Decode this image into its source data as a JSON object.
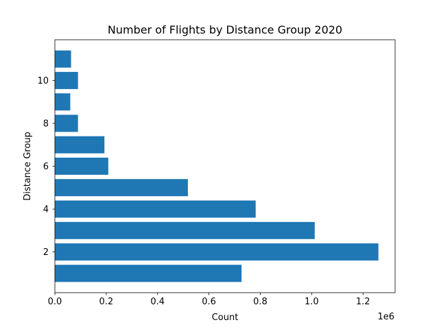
{
  "chart_data": {
    "type": "bar",
    "orientation": "horizontal",
    "title": "Number of Flights by Distance Group 2020",
    "xlabel": "Count",
    "ylabel": "Distance Group",
    "x_offset_label": "1e6",
    "xlim": [
      0,
      1325000
    ],
    "ylim": [
      0.1,
      11.9
    ],
    "x_ticks": [
      0,
      200000,
      400000,
      600000,
      800000,
      1000000,
      1200000
    ],
    "x_tick_labels": [
      "0.0",
      "0.2",
      "0.4",
      "0.6",
      "0.8",
      "1.0",
      "1.2"
    ],
    "y_ticks": [
      2,
      4,
      6,
      8,
      10
    ],
    "y_tick_labels": [
      "2",
      "4",
      "6",
      "8",
      "10"
    ],
    "categories": [
      1,
      2,
      3,
      4,
      5,
      6,
      7,
      8,
      9,
      10,
      11
    ],
    "values": [
      727000,
      1260000,
      1012000,
      782000,
      518000,
      208000,
      193000,
      90000,
      60000,
      90000,
      63000
    ],
    "bar_color": "#1f77b4",
    "grid": false,
    "legend": "none"
  }
}
